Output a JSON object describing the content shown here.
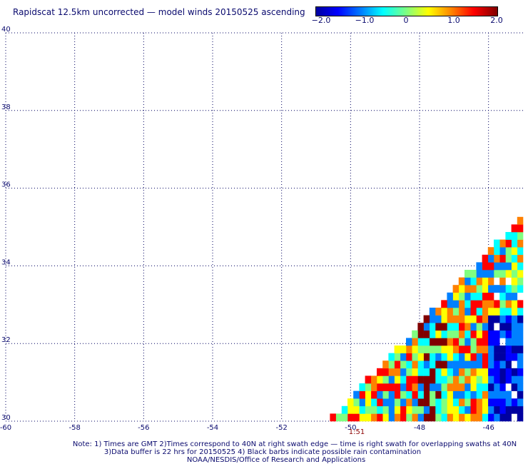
{
  "title": "Rapidscat 12.5km uncorrected — model winds 20150525 ascending",
  "colorbar": {
    "labels": [
      "−2.0",
      "−1.0",
      "0",
      "1.0",
      "2.0"
    ],
    "values": [
      -2.0,
      -1.0,
      0,
      1.0,
      2.0
    ],
    "min": -2.0,
    "max": 2.0,
    "colors": [
      "#0000a0",
      "#0000ff",
      "#0080ff",
      "#00ffff",
      "#80ff80",
      "#ffff00",
      "#ff8000",
      "#ff0000",
      "#800000"
    ]
  },
  "map": {
    "lon_range": [
      -60,
      -45
    ],
    "lat_range": [
      30,
      40
    ],
    "lon_labels": [
      "-60",
      "-58",
      "-56",
      "-54",
      "-52",
      "-50",
      "-48",
      "-46"
    ],
    "lon_values": [
      -60,
      -58,
      -56,
      -54,
      -52,
      -50,
      -48,
      -46
    ],
    "lat_labels": [
      "40",
      "38",
      "36",
      "34",
      "32",
      "30"
    ],
    "lat_values": [
      40,
      38,
      36,
      34,
      32,
      30
    ],
    "grid_style": "dotted",
    "swath_time": "1:51",
    "swath_time_lon": -49.7
  },
  "notes": {
    "line1": "Note: 1) Times are GMT 2)Times correspond to 40N at right swath edge — time is right swath for overlapping swaths at 40N",
    "line2": "3)Data buffer is 22 hrs for 20150525 4) Black barbs indicate possible rain contamination",
    "line3": "NOAA/NESDIS/Office of Research and Applications"
  }
}
